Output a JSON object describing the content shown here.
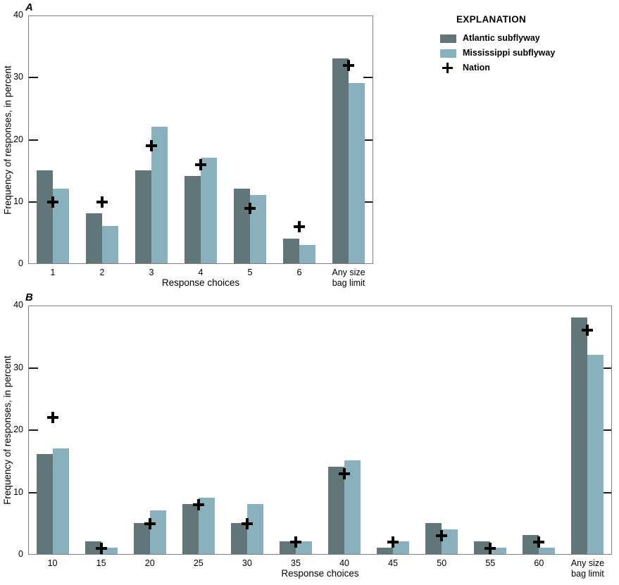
{
  "colors": {
    "atlantic": "#617679",
    "mississippi": "#88b1bd",
    "nation_marker": "#000000",
    "axis_border": "#7d7f82",
    "tick": "#1c1c1c",
    "text": "#000000",
    "background": "#ffffff"
  },
  "legend": {
    "title": "EXPLANATION",
    "items": [
      {
        "label": "Atlantic subflyway",
        "swatch": "atlantic"
      },
      {
        "label": "Mississippi subflyway",
        "swatch": "mississippi"
      },
      {
        "label": "Nation",
        "marker": "plus"
      }
    ]
  },
  "chart_data": [
    {
      "type": "bar",
      "panel_label": "A",
      "xlabel": "Response choices",
      "ylabel": "Frequency of responses, in percent",
      "ylim": [
        0,
        40
      ],
      "yticks": [
        0,
        10,
        20,
        30,
        40
      ],
      "grid": false,
      "legend_position": "right-of-panel-A",
      "categories": [
        "1",
        "2",
        "3",
        "4",
        "5",
        "6",
        "Any size\nbag limit"
      ],
      "series": [
        {
          "name": "Atlantic subflyway",
          "type": "bar",
          "values": [
            15,
            8,
            15,
            14,
            12,
            4,
            33
          ]
        },
        {
          "name": "Mississippi subflyway",
          "type": "bar",
          "values": [
            12,
            6,
            22,
            17,
            11,
            3,
            29
          ]
        },
        {
          "name": "Nation",
          "type": "plus-marker",
          "values": [
            10,
            10,
            19,
            16,
            9,
            6,
            32
          ]
        }
      ]
    },
    {
      "type": "bar",
      "panel_label": "B",
      "xlabel": "Response choices",
      "ylabel": "Frequency of responses, in percent",
      "ylim": [
        0,
        40
      ],
      "yticks": [
        0,
        10,
        20,
        30,
        40
      ],
      "grid": false,
      "categories": [
        "10",
        "15",
        "20",
        "25",
        "30",
        "35",
        "40",
        "45",
        "50",
        "55",
        "60",
        "Any size\nbag limit"
      ],
      "series": [
        {
          "name": "Atlantic subflyway",
          "type": "bar",
          "values": [
            16,
            2,
            5,
            8,
            5,
            2,
            14,
            1,
            5,
            2,
            3,
            38
          ]
        },
        {
          "name": "Mississippi subflyway",
          "type": "bar",
          "values": [
            17,
            1,
            7,
            9,
            8,
            2,
            15,
            2,
            4,
            1,
            1,
            32
          ]
        },
        {
          "name": "Nation",
          "type": "plus-marker",
          "values": [
            22,
            1,
            5,
            8,
            5,
            2,
            13,
            2,
            3,
            1,
            2,
            36
          ]
        }
      ]
    }
  ]
}
